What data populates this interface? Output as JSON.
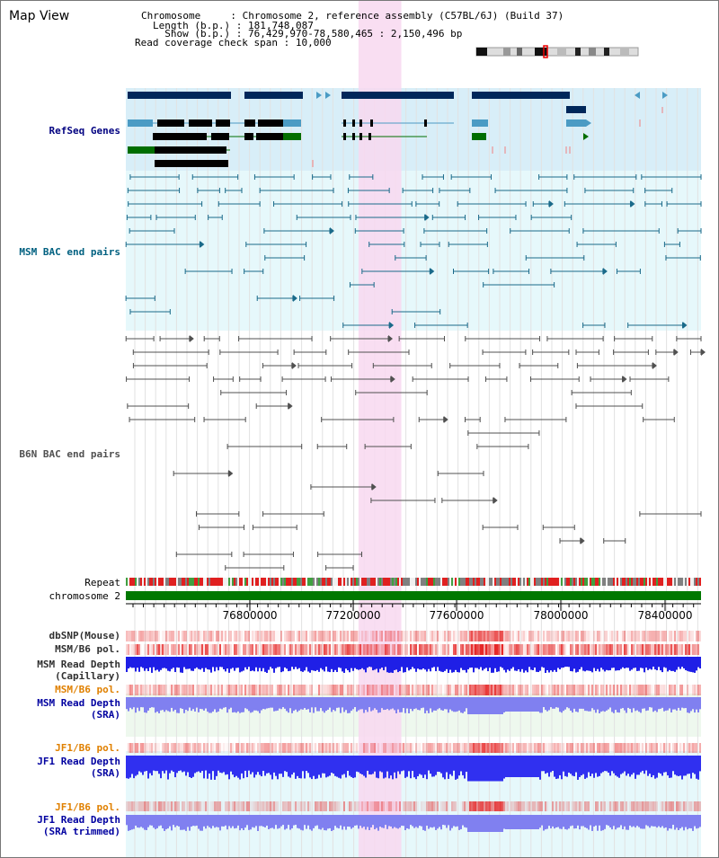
{
  "view": {
    "title": "Map View",
    "chromosome_key": "Chromosome",
    "chromosome_value": "Chromosome 2, reference assembly (C57BL/6J) (Build 37)",
    "length_key": "Length (b.p.)",
    "length_value": "181,748,087",
    "show_key": "Show (b.p.)",
    "show_value": "76,429,970-78,580,465 : 2,150,496 bp",
    "coverage_key": "Read coverage check span",
    "coverage_value": "10,000"
  },
  "tracks": [
    {
      "id": "refseq",
      "label": "RefSeq Genes",
      "color": "#000080"
    },
    {
      "id": "msm-bac",
      "label": "MSM BAC end pairs",
      "color": "#006080"
    },
    {
      "id": "b6n-bac",
      "label": "B6N BAC end pairs",
      "color": "#505050"
    },
    {
      "id": "repeat",
      "label": "Repeat",
      "color": "#000000"
    },
    {
      "id": "chromosome",
      "label": "chromosome 2",
      "color": "#000000"
    },
    {
      "id": "dbsnp",
      "label": "dbSNP(Mouse)",
      "color": "#303030"
    },
    {
      "id": "msm-b6-pol-1",
      "label": "MSM/B6 pol.",
      "color": "#303030"
    },
    {
      "id": "msm-depth-cap",
      "label": "MSM Read Depth",
      "label2": "(Capillary)",
      "color": "#303030"
    },
    {
      "id": "msm-b6-pol-2",
      "label": "MSM/B6 pol.",
      "color": "#e08000"
    },
    {
      "id": "msm-depth-sra",
      "label": "MSM Read Depth",
      "label2": "(SRA)",
      "color": "#0000a0"
    },
    {
      "id": "jf1-b6-pol-1",
      "label": "JF1/B6 pol.",
      "color": "#e08000"
    },
    {
      "id": "jf1-depth-sra",
      "label": "JF1 Read Depth",
      "label2": "(SRA)",
      "color": "#0000a0"
    },
    {
      "id": "jf1-b6-pol-2",
      "label": "JF1/B6 pol.",
      "color": "#e08000"
    },
    {
      "id": "jf1-depth-trim",
      "label": "JF1 Read Depth",
      "label2": "(SRA trimmed)",
      "color": "#0000a0"
    }
  ],
  "axis": {
    "ticks": [
      "76800000",
      "77200000",
      "77600000",
      "78000000",
      "78400000"
    ],
    "range": [
      76429970,
      78580465
    ]
  },
  "highlight": {
    "start": 77300000,
    "end": 77460000
  },
  "colors": {
    "refseq_bg": "#d8eef8",
    "msm_bg": "#e6f8fb",
    "b6n_bg": "#ffffff",
    "gene_dark": "#00275a",
    "gene_light": "#4b9bc4",
    "gene_green": "#006e00",
    "highlight": "#f8d8f0",
    "chrom_green": "#007800",
    "msm_pair": "#1a6a8a",
    "b6n_pair": "#505050",
    "depth_blue": "#1f1fe6",
    "depth_light": "#8080f0"
  },
  "icons": {
    "chromosome_ideogram": "chromosome-ideogram-icon"
  }
}
